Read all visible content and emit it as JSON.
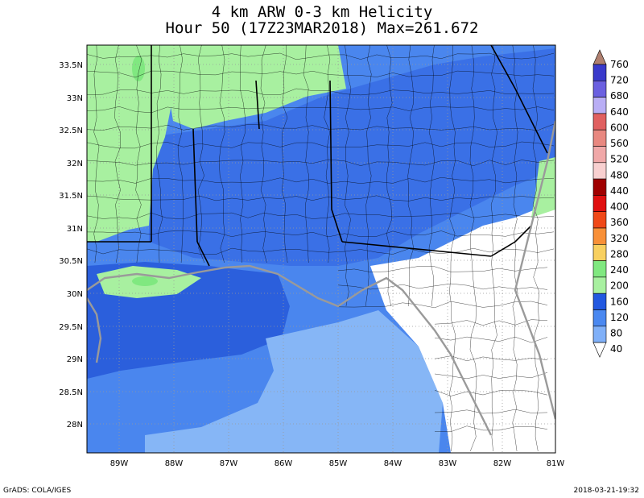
{
  "title_line1": "4 km ARW 0-3 km Helicity",
  "title_line2": "Hour 50 (17Z23MAR2018) Max=261.672",
  "footer_left": "GrADS: COLA/IGES",
  "footer_right": "2018-03-21-19:32",
  "lat_labels": [
    "33.5N",
    "33N",
    "32.5N",
    "32N",
    "31.5N",
    "31N",
    "30.5N",
    "30N",
    "29.5N",
    "29N",
    "28.5N",
    "28N"
  ],
  "lon_labels": [
    "89W",
    "88W",
    "87W",
    "86W",
    "85W",
    "84W",
    "83W",
    "82W",
    "81W"
  ],
  "colorbar": {
    "labels": [
      "760",
      "720",
      "680",
      "640",
      "600",
      "560",
      "520",
      "480",
      "440",
      "400",
      "360",
      "320",
      "280",
      "240",
      "200",
      "160",
      "120",
      "80",
      "40"
    ],
    "colors": [
      "#b08070",
      "#3a3acb",
      "#6b60e0",
      "#b9aef5",
      "#e06060",
      "#e88880",
      "#f0a8a8",
      "#f8d0d0",
      "#a00000",
      "#e01010",
      "#f04818",
      "#f89038",
      "#f8d060",
      "#80e880",
      "#a8f0a0",
      "#2258e0",
      "#4a88f0",
      "#80b0f8"
    ],
    "arrow_top_color": "#b08070",
    "arrow_bottom_color": "#ffffff"
  },
  "colors": {
    "gulf": "#4a86ee",
    "coast_band": "#2b5fdc",
    "light_blue": "#86b6f6",
    "inland_blue": "#3a70e6",
    "green": "#a8f0a0",
    "land_white": "#ffffff",
    "border": "#000000",
    "county": "#000000",
    "coastline": "#9a9a9a"
  }
}
